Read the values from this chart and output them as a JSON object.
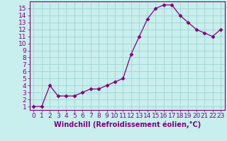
{
  "x": [
    0,
    1,
    2,
    3,
    4,
    5,
    6,
    7,
    8,
    9,
    10,
    11,
    12,
    13,
    14,
    15,
    16,
    17,
    18,
    19,
    20,
    21,
    22,
    23
  ],
  "y": [
    1.0,
    1.0,
    4.0,
    2.5,
    2.5,
    2.5,
    3.0,
    3.5,
    3.5,
    4.0,
    4.5,
    5.0,
    8.5,
    11.0,
    13.5,
    15.0,
    15.5,
    15.5,
    14.0,
    13.0,
    12.0,
    11.5,
    11.0,
    12.0
  ],
  "line_color": "#800080",
  "marker": "D",
  "marker_size": 2.5,
  "bg_color": "#c8eeed",
  "grid_color": "#9acfcc",
  "xlabel": "Windchill (Refroidissement éolien,°C)",
  "xlabel_color": "#800080",
  "tick_color": "#800080",
  "ylim": [
    0.5,
    16
  ],
  "yticks": [
    1,
    2,
    3,
    4,
    5,
    6,
    7,
    8,
    9,
    10,
    11,
    12,
    13,
    14,
    15
  ],
  "xticks": [
    0,
    1,
    2,
    3,
    4,
    5,
    6,
    7,
    8,
    9,
    10,
    11,
    12,
    13,
    14,
    15,
    16,
    17,
    18,
    19,
    20,
    21,
    22,
    23
  ],
  "spine_color": "#800080",
  "tick_fontsize": 6.5,
  "xlabel_fontsize": 7.0
}
